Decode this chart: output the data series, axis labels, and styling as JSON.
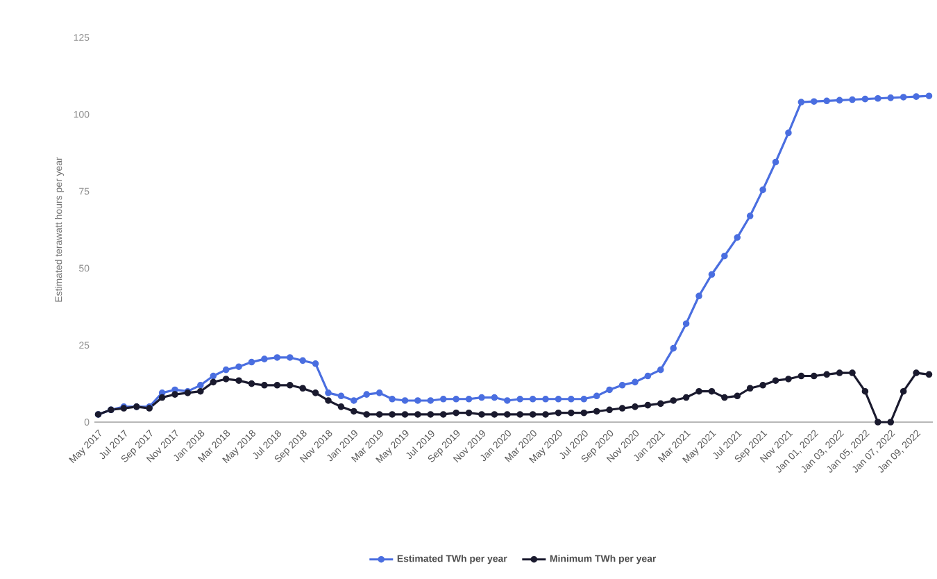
{
  "chart_data": {
    "type": "line",
    "ylabel": "Estimated terawatt hours per year",
    "categories": [
      "May 2017",
      null,
      "Jul 2017",
      null,
      "Sep 2017",
      null,
      "Nov 2017",
      null,
      "Jan 2018",
      null,
      "Mar 2018",
      null,
      "May 2018",
      null,
      "Jul 2018",
      null,
      "Sep 2018",
      null,
      "Nov 2018",
      null,
      "Jan 2019",
      null,
      "Mar 2019",
      null,
      "May 2019",
      null,
      "Jul 2019",
      null,
      "Sep 2019",
      null,
      "Nov 2019",
      null,
      "Jan 2020",
      null,
      "Mar 2020",
      null,
      "May 2020",
      null,
      "Jul 2020",
      null,
      "Sep 2020",
      null,
      "Nov 2020",
      null,
      "Jan 2021",
      null,
      "Mar 2021",
      null,
      "May 2021",
      null,
      "Jul 2021",
      null,
      "Sep 2021",
      null,
      "Nov 2021",
      null,
      "Jan 01, 2022",
      null,
      "Jan 03, 2022",
      null,
      "Jan 05, 2022",
      null,
      "Jan 07, 2022",
      null,
      "Jan 09, 2022",
      null
    ],
    "series": [
      {
        "name": "Estimated TWh per year",
        "color": "#4a6ee0",
        "values": [
          2.5,
          4,
          5,
          5,
          5,
          9.5,
          10.5,
          10,
          12,
          15,
          17,
          18,
          19.5,
          20.5,
          21,
          21,
          20,
          19,
          9.5,
          8.5,
          7,
          9,
          9.5,
          7.5,
          7,
          7,
          7,
          7.5,
          7.5,
          7.5,
          8,
          8,
          7,
          7.5,
          7.5,
          7.5,
          7.5,
          7.5,
          7.5,
          8.5,
          10.5,
          12,
          13,
          15,
          17,
          24,
          32,
          41,
          48,
          54,
          60,
          67,
          75.5,
          84.5,
          94,
          104,
          104.2,
          104.4,
          104.6,
          104.8,
          105,
          105.2,
          105.4,
          105.6,
          105.8,
          106
        ]
      },
      {
        "name": "Minimum TWh per year",
        "color": "#1a1a2e",
        "values": [
          2.5,
          4,
          4.5,
          5,
          4.5,
          8,
          9,
          9.5,
          10,
          13,
          14,
          13.5,
          12.5,
          12,
          12,
          12,
          11,
          9.5,
          7,
          5,
          3.5,
          2.5,
          2.5,
          2.5,
          2.5,
          2.5,
          2.5,
          2.5,
          3,
          3,
          2.5,
          2.5,
          2.5,
          2.5,
          2.5,
          2.5,
          3,
          3,
          3,
          3.5,
          4,
          4.5,
          5,
          5.5,
          6,
          7,
          8,
          10,
          10,
          8,
          8.5,
          11,
          12,
          13.5,
          14,
          15,
          15,
          15.5,
          16,
          16,
          10,
          0,
          0,
          10,
          16,
          15.5
        ]
      }
    ],
    "ylim": [
      0,
      125
    ],
    "yticks": [
      0,
      25,
      50,
      75,
      100,
      125
    ],
    "legend": "bottom",
    "marker": "circle",
    "line_style": "solid",
    "grid": false
  }
}
